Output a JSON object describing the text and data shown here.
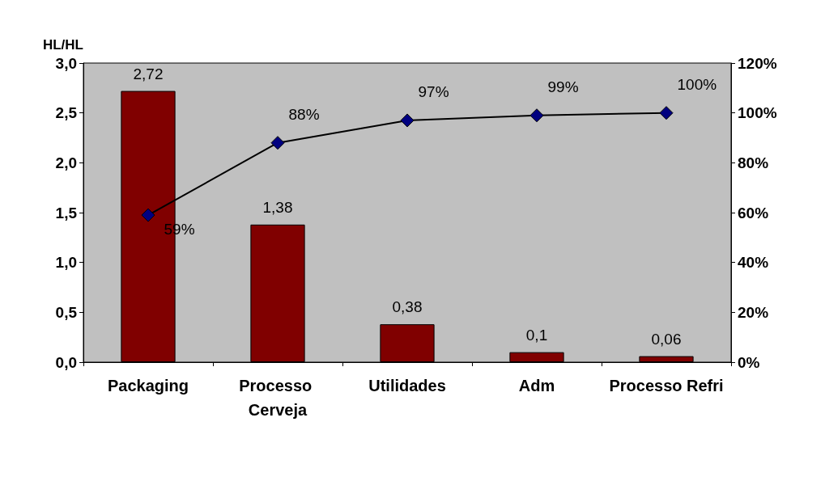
{
  "chart_data": {
    "type": "bar",
    "ylabel": "HL/HL",
    "categories": [
      "Packaging",
      "Processo Cerveja",
      "Utilidades",
      "Adm",
      "Processo Refri"
    ],
    "series": [
      {
        "color": "#800000",
        "values": [
          2.72,
          1.38,
          0.38,
          0.1,
          0.06
        ],
        "value_labels": [
          "2,72",
          "1,38",
          "0,38",
          "0,1",
          "0,06"
        ]
      },
      {
        "type": "line",
        "axis": "y2",
        "color": "#000080",
        "values": [
          59,
          88,
          97,
          99,
          100
        ],
        "value_labels": [
          "59%",
          "88%",
          "97%",
          "99%",
          "100%"
        ]
      }
    ],
    "ylim": [
      0,
      3
    ],
    "yticks": [
      {
        "value": 0,
        "label": "0,0"
      },
      {
        "value": 0.5,
        "label": "0,5"
      },
      {
        "value": 1,
        "label": "1,0"
      },
      {
        "value": 1.5,
        "label": "1,5"
      },
      {
        "value": 2,
        "label": "2,0"
      },
      {
        "value": 2.5,
        "label": "2,5"
      },
      {
        "value": 3,
        "label": "3,0"
      }
    ],
    "y2lim": [
      0,
      120
    ],
    "y2ticks": [
      {
        "value": 0,
        "label": "0%"
      },
      {
        "value": 20,
        "label": "20%"
      },
      {
        "value": 40,
        "label": "40%"
      },
      {
        "value": 60,
        "label": "60%"
      },
      {
        "value": 80,
        "label": "80%"
      },
      {
        "value": 100,
        "label": "100%"
      },
      {
        "value": 120,
        "label": "120%"
      }
    ],
    "grid": false,
    "marker": "diamond",
    "line_style": "solid"
  }
}
